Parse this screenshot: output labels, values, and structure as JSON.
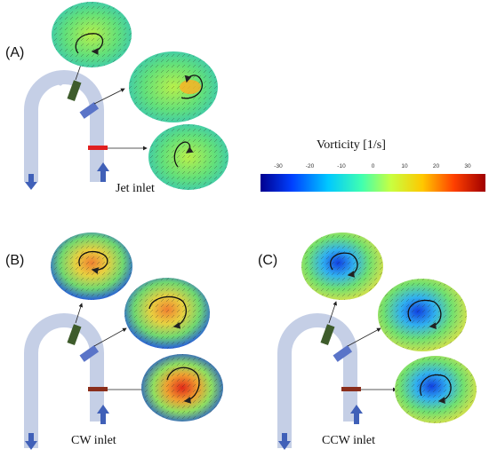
{
  "panels": [
    {
      "label": "(A)",
      "inlet": "Jet inlet"
    },
    {
      "label": "(B)",
      "inlet": "CW inlet"
    },
    {
      "label": "(C)",
      "inlet": "CCW inlet"
    }
  ],
  "colorbar": {
    "title": "Vorticity [1/s]",
    "ticks": [
      "-30",
      "-20",
      "-10",
      "0",
      "10",
      "20",
      "30"
    ],
    "colors": [
      "#00008f",
      "#0040ff",
      "#00c8ff",
      "#40ffb0",
      "#c8ff40",
      "#ffc800",
      "#ff4000",
      "#a00000"
    ]
  },
  "palette": {
    "pipe": "#c5cfe6",
    "section_green": "#3e5c2b",
    "section_blue": "#5a74c8",
    "section_red_jet": "#e02020",
    "section_red_other": "#8a2e1c",
    "inlet_arrow": "#4060b8"
  }
}
